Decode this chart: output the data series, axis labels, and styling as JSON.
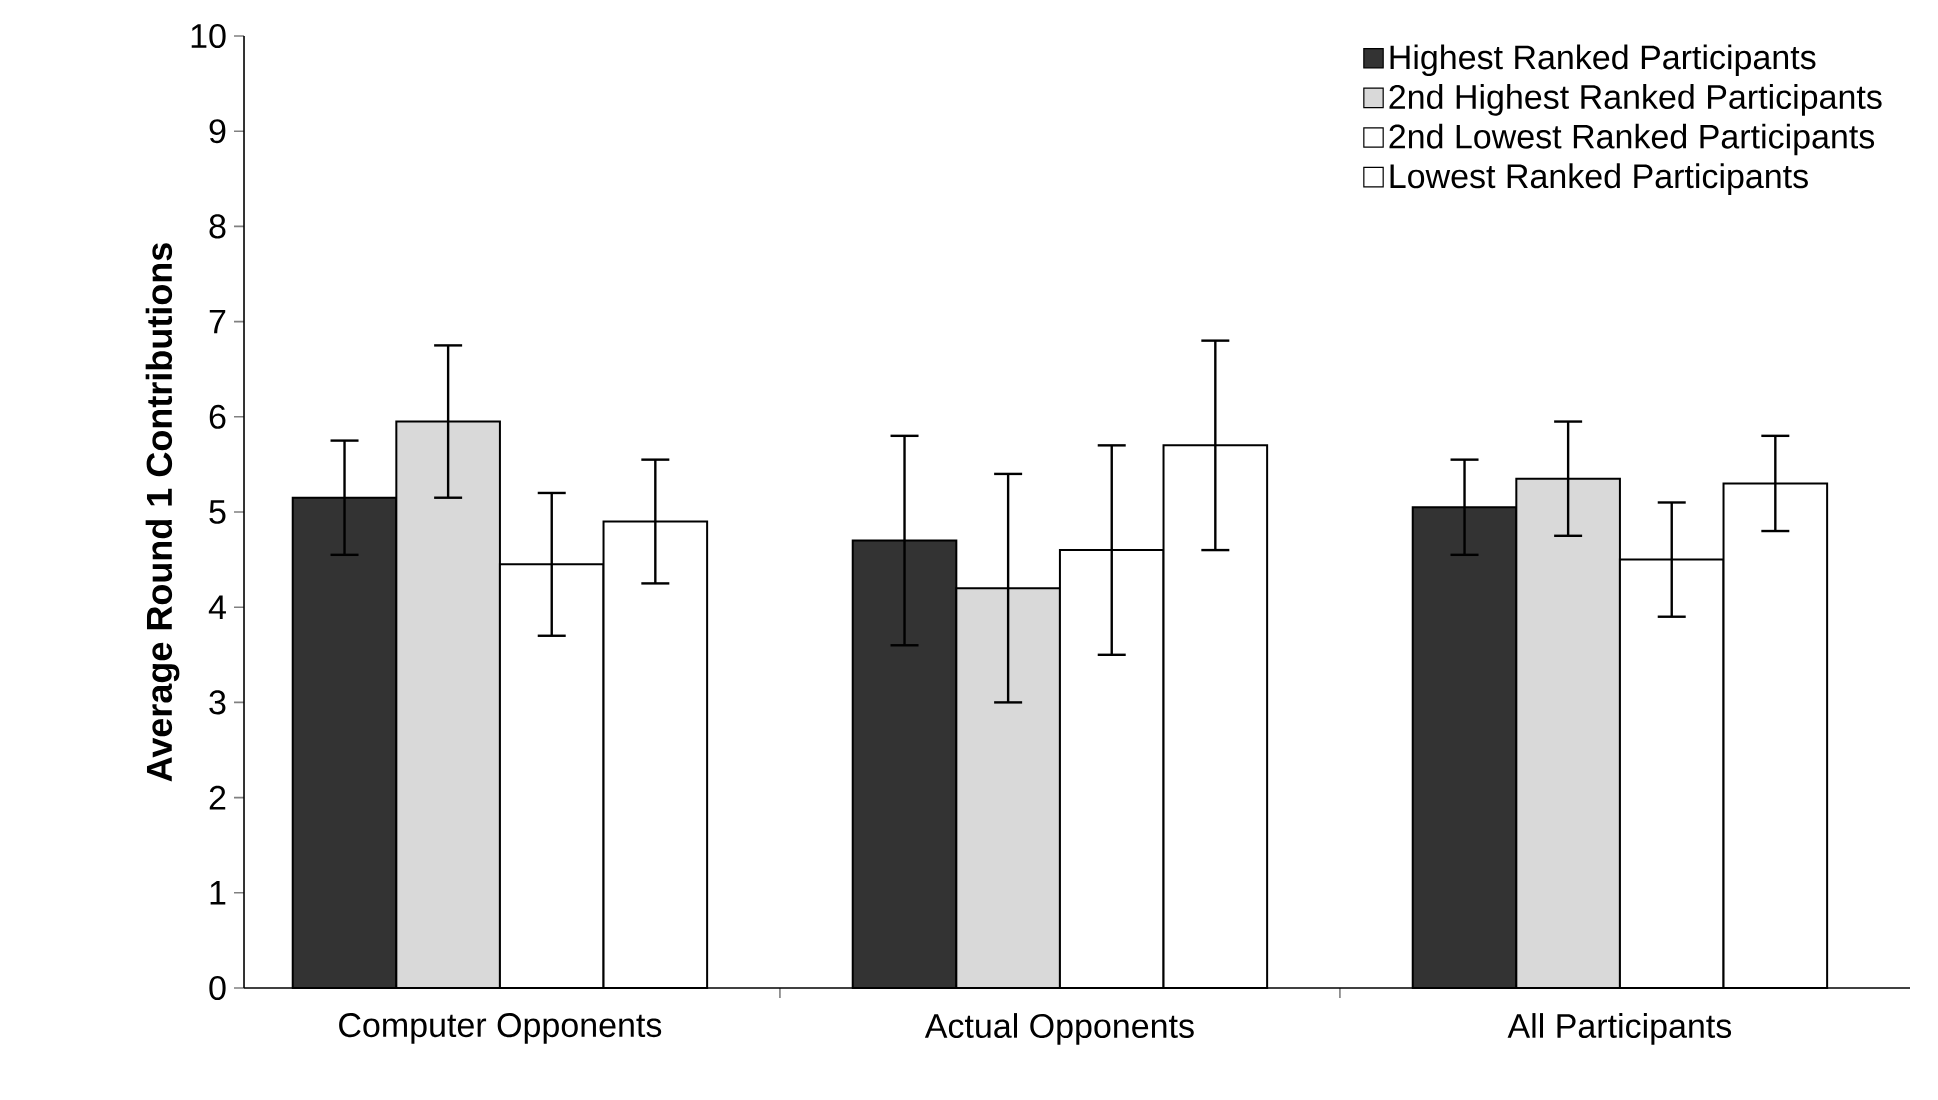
{
  "chart_data": {
    "type": "bar",
    "ylabel": "Average Round 1 Contributions",
    "categories": [
      "Computer Opponents",
      "Actual Opponents",
      "All Participants"
    ],
    "series": [
      {
        "name": "Highest Ranked Participants",
        "color": "#333333",
        "values": [
          5.15,
          4.7,
          5.05
        ],
        "errors": [
          0.6,
          1.1,
          0.5
        ]
      },
      {
        "name": "2nd Highest Ranked Participants",
        "color": "#d9d9d9",
        "values": [
          5.95,
          4.2,
          5.35
        ],
        "errors": [
          0.8,
          1.2,
          0.6
        ]
      },
      {
        "name": "2nd Lowest Ranked Participants",
        "color": "#ffffff",
        "values": [
          4.45,
          4.6,
          4.5
        ],
        "errors": [
          0.75,
          1.1,
          0.6
        ]
      },
      {
        "name": "Lowest Ranked Participants",
        "color": "#ffffff",
        "values": [
          4.9,
          5.7,
          5.3
        ],
        "errors": [
          0.65,
          1.1,
          0.5
        ]
      }
    ],
    "ylim": [
      0,
      10
    ],
    "yticks": [
      0,
      1,
      2,
      3,
      4,
      5,
      6,
      7,
      8,
      9,
      10
    ],
    "legend": "top right",
    "grid": false
  }
}
